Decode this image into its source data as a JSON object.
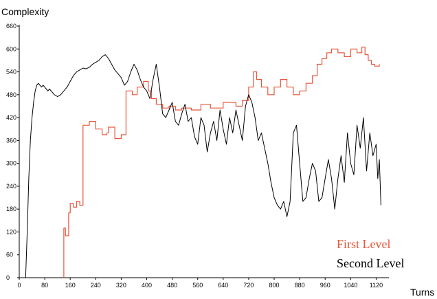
{
  "chart_data": {
    "type": "line",
    "title": "",
    "ylabel": "Complexity",
    "xlabel": "Turns",
    "xlim": [
      0,
      1160
    ],
    "ylim": [
      0,
      660
    ],
    "x_ticks": [
      0,
      80,
      160,
      240,
      320,
      400,
      480,
      560,
      640,
      720,
      800,
      880,
      960,
      1040,
      1120
    ],
    "y_ticks": [
      0,
      60,
      120,
      180,
      240,
      300,
      360,
      420,
      480,
      540,
      600,
      660
    ],
    "grid": false,
    "legend_position": "bottom-right",
    "series": [
      {
        "name": "First Level",
        "color": "#e8553a",
        "x": [
          140,
          140,
          145,
          145,
          155,
          155,
          160,
          160,
          170,
          170,
          180,
          180,
          190,
          190,
          200,
          200,
          220,
          220,
          240,
          240,
          260,
          260,
          275,
          275,
          280,
          280,
          300,
          300,
          320,
          320,
          335,
          335,
          355,
          355,
          370,
          370,
          390,
          390,
          405,
          405,
          415,
          415,
          430,
          430,
          450,
          450,
          470,
          470,
          490,
          490,
          510,
          510,
          540,
          540,
          570,
          570,
          600,
          600,
          640,
          640,
          680,
          680,
          700,
          700,
          720,
          720,
          735,
          735,
          745,
          745,
          760,
          760,
          780,
          780,
          800,
          800,
          820,
          820,
          840,
          840,
          860,
          860,
          880,
          880,
          900,
          900,
          920,
          920,
          935,
          935,
          950,
          950,
          965,
          965,
          980,
          980,
          1000,
          1000,
          1020,
          1020,
          1040,
          1040,
          1060,
          1060,
          1075,
          1075,
          1085,
          1085,
          1095,
          1095,
          1105,
          1105,
          1115,
          1115,
          1130,
          1130
        ],
        "y": [
          0,
          130,
          130,
          110,
          110,
          170,
          170,
          195,
          195,
          185,
          185,
          200,
          200,
          190,
          190,
          400,
          400,
          410,
          410,
          390,
          390,
          375,
          375,
          380,
          380,
          395,
          395,
          365,
          365,
          375,
          375,
          490,
          490,
          480,
          480,
          500,
          500,
          515,
          515,
          490,
          490,
          470,
          470,
          455,
          455,
          445,
          445,
          450,
          450,
          440,
          440,
          445,
          445,
          440,
          440,
          455,
          455,
          445,
          445,
          460,
          460,
          450,
          450,
          465,
          465,
          500,
          500,
          540,
          540,
          520,
          520,
          500,
          500,
          480,
          480,
          500,
          500,
          520,
          520,
          500,
          500,
          480,
          480,
          490,
          490,
          510,
          510,
          530,
          530,
          560,
          560,
          575,
          575,
          590,
          590,
          600,
          600,
          590,
          590,
          580,
          580,
          600,
          600,
          590,
          590,
          605,
          605,
          585,
          585,
          570,
          570,
          560,
          560,
          555,
          555,
          560
        ]
      },
      {
        "name": "Second Level",
        "color": "#000000",
        "x": [
          20,
          25,
          30,
          35,
          40,
          45,
          50,
          55,
          60,
          65,
          70,
          75,
          80,
          85,
          90,
          95,
          100,
          105,
          110,
          115,
          120,
          130,
          140,
          150,
          160,
          170,
          180,
          190,
          200,
          210,
          220,
          230,
          240,
          250,
          260,
          270,
          280,
          290,
          300,
          310,
          320,
          330,
          340,
          350,
          360,
          370,
          380,
          390,
          400,
          410,
          420,
          430,
          440,
          450,
          460,
          470,
          480,
          490,
          500,
          510,
          520,
          530,
          540,
          550,
          560,
          570,
          580,
          590,
          600,
          610,
          620,
          630,
          640,
          650,
          660,
          670,
          680,
          690,
          700,
          710,
          720,
          730,
          740,
          750,
          760,
          770,
          780,
          790,
          800,
          810,
          820,
          830,
          840,
          850,
          860,
          870,
          880,
          890,
          900,
          910,
          920,
          930,
          940,
          950,
          960,
          970,
          980,
          990,
          1000,
          1010,
          1020,
          1030,
          1040,
          1050,
          1060,
          1070,
          1080,
          1090,
          1100,
          1110,
          1120,
          1125,
          1130,
          1135
        ],
        "y": [
          0,
          120,
          260,
          360,
          420,
          460,
          490,
          505,
          510,
          505,
          500,
          505,
          500,
          495,
          490,
          495,
          490,
          485,
          480,
          478,
          475,
          480,
          490,
          500,
          515,
          530,
          540,
          545,
          550,
          548,
          552,
          560,
          565,
          570,
          580,
          585,
          575,
          560,
          545,
          535,
          525,
          505,
          515,
          540,
          560,
          545,
          520,
          500,
          490,
          470,
          520,
          560,
          500,
          430,
          420,
          440,
          460,
          410,
          400,
          430,
          455,
          410,
          420,
          370,
          350,
          420,
          400,
          330,
          380,
          410,
          360,
          440,
          390,
          350,
          420,
          380,
          440,
          400,
          360,
          450,
          480,
          460,
          420,
          360,
          380,
          340,
          300,
          250,
          210,
          190,
          180,
          200,
          160,
          200,
          380,
          400,
          300,
          200,
          210,
          260,
          300,
          280,
          200,
          210,
          260,
          310,
          260,
          180,
          260,
          320,
          250,
          380,
          300,
          270,
          400,
          340,
          420,
          280,
          380,
          320,
          350,
          260,
          310,
          190
        ]
      }
    ]
  }
}
